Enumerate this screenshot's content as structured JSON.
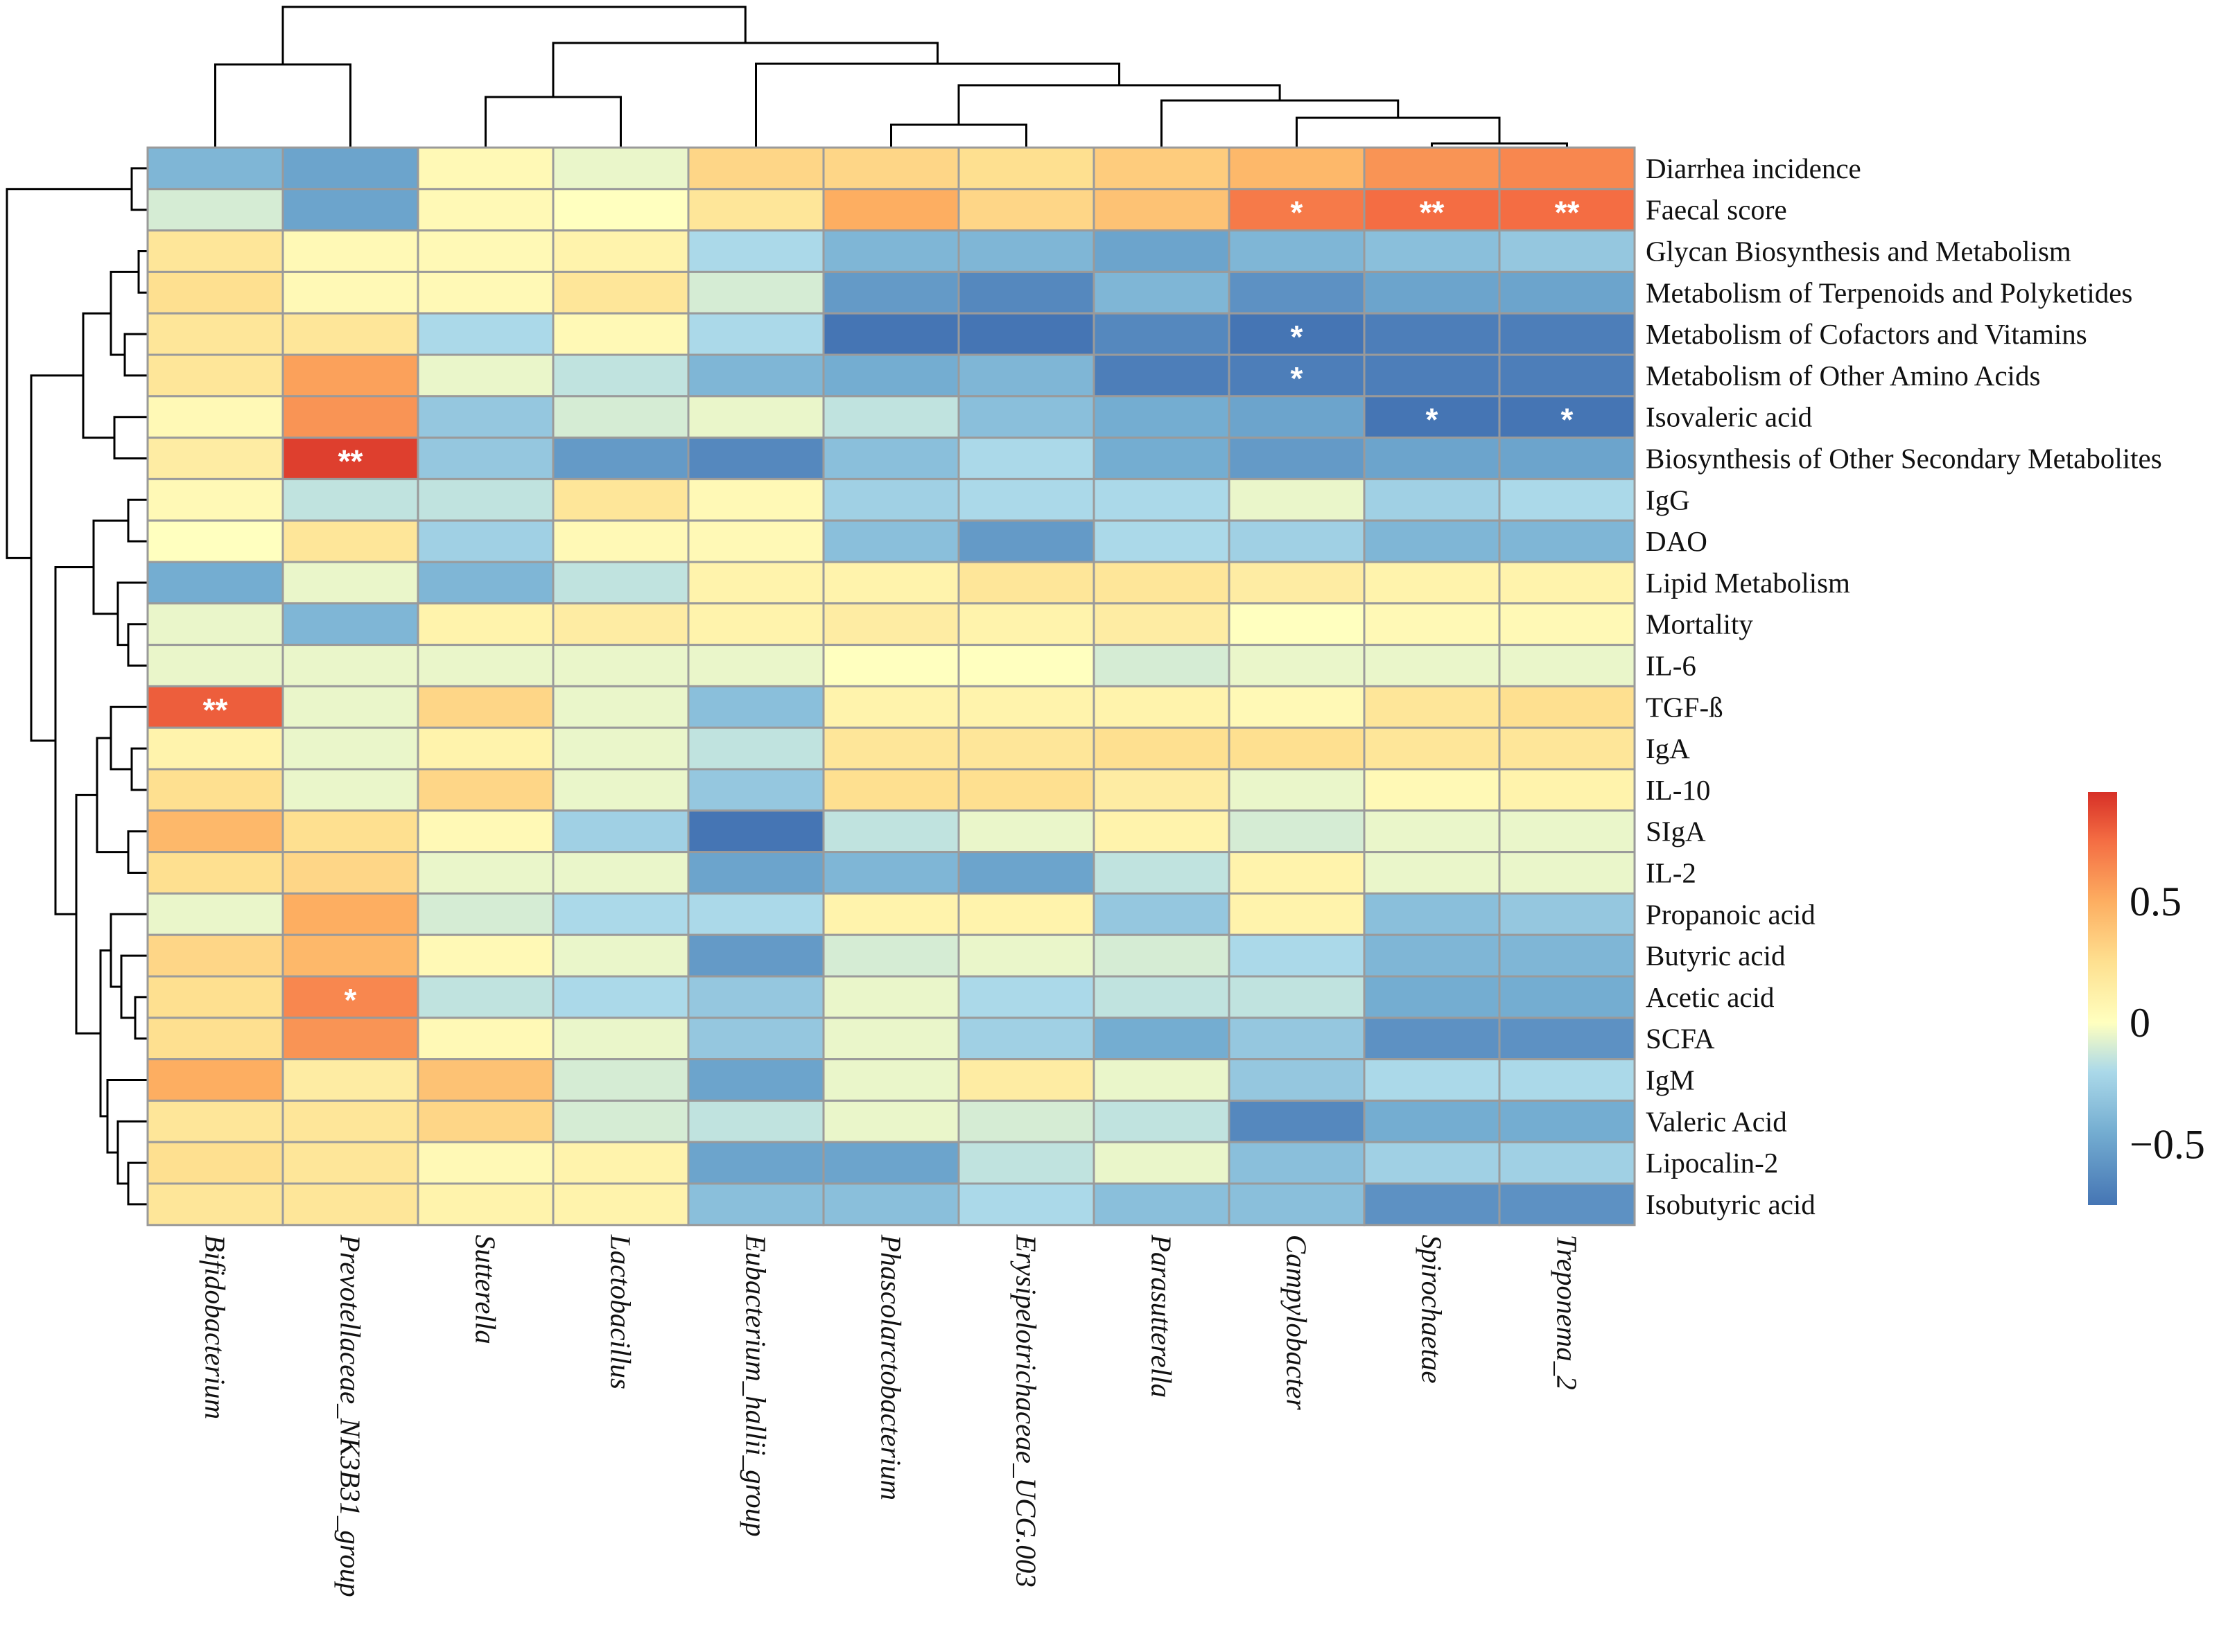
{
  "chart_data": {
    "type": "heatmap",
    "title": "",
    "columns": [
      "Bifidobacterium",
      "Prevotellaceae_NK3B31_group",
      "Sutterella",
      "Lactobacillus",
      "Eubacterium_hallii_group",
      "Phascolarctobacterium",
      "Erysipelotrichaceae_UCG.003",
      "Parasutterella",
      "Campylobacter",
      "Spirochaetae",
      "Treponema_2"
    ],
    "rows": [
      "Diarrhea incidence",
      "Faecal score",
      "Glycan Biosynthesis and Metabolism",
      "Metabolism of Terpenoids and Polyketides",
      "Metabolism of Cofactors and Vitamins",
      "Metabolism of Other Amino Acids",
      "Isovaleric acid",
      "Biosynthesis of Other Secondary Metabolites",
      "IgG",
      "DAO",
      "Lipid Metabolism",
      "Mortality",
      "IL-6",
      "TGF-ß",
      "IgA",
      "IL-10",
      "SIgA",
      "IL-2",
      "Propanoic acid",
      "Butyric acid",
      "Acetic acid",
      "SCFA",
      "IgM",
      "Valeric Acid",
      "Lipocalin-2",
      "Isobutyric acid"
    ],
    "values": [
      [
        -0.4,
        -0.5,
        0.05,
        -0.05,
        0.3,
        0.3,
        0.25,
        0.35,
        0.45,
        0.6,
        0.65
      ],
      [
        -0.1,
        -0.5,
        0.05,
        0.0,
        0.2,
        0.5,
        0.3,
        0.4,
        0.7,
        0.75,
        0.75
      ],
      [
        0.2,
        0.05,
        0.05,
        0.1,
        -0.2,
        -0.4,
        -0.4,
        -0.5,
        -0.4,
        -0.35,
        -0.3
      ],
      [
        0.25,
        0.05,
        0.05,
        0.2,
        -0.1,
        -0.55,
        -0.65,
        -0.4,
        -0.6,
        -0.5,
        -0.5
      ],
      [
        0.2,
        0.2,
        -0.2,
        0.05,
        -0.2,
        -0.75,
        -0.75,
        -0.65,
        -0.75,
        -0.7,
        -0.7
      ],
      [
        0.2,
        0.55,
        -0.05,
        -0.15,
        -0.4,
        -0.45,
        -0.4,
        -0.7,
        -0.7,
        -0.7,
        -0.7
      ],
      [
        0.05,
        0.6,
        -0.3,
        -0.1,
        -0.05,
        -0.15,
        -0.35,
        -0.45,
        -0.5,
        -0.75,
        -0.75
      ],
      [
        0.15,
        0.9,
        -0.3,
        -0.55,
        -0.65,
        -0.35,
        -0.2,
        -0.45,
        -0.55,
        -0.5,
        -0.5
      ],
      [
        0.05,
        -0.15,
        -0.15,
        0.2,
        0.05,
        -0.25,
        -0.2,
        -0.2,
        -0.05,
        -0.25,
        -0.2
      ],
      [
        0.0,
        0.2,
        -0.25,
        0.05,
        0.05,
        -0.35,
        -0.55,
        -0.2,
        -0.25,
        -0.4,
        -0.4
      ],
      [
        -0.45,
        -0.05,
        -0.4,
        -0.15,
        0.1,
        0.1,
        0.2,
        0.2,
        0.15,
        0.1,
        0.1
      ],
      [
        -0.05,
        -0.4,
        0.1,
        0.15,
        0.1,
        0.15,
        0.1,
        0.15,
        0.0,
        0.05,
        0.05
      ],
      [
        -0.05,
        -0.05,
        -0.05,
        -0.05,
        -0.05,
        0.0,
        0.0,
        -0.1,
        -0.05,
        -0.05,
        -0.05
      ],
      [
        0.8,
        -0.05,
        0.3,
        -0.05,
        -0.35,
        0.1,
        0.1,
        0.1,
        0.05,
        0.2,
        0.25
      ],
      [
        0.1,
        -0.05,
        0.1,
        -0.05,
        -0.15,
        0.2,
        0.2,
        0.25,
        0.25,
        0.2,
        0.2
      ],
      [
        0.25,
        -0.05,
        0.3,
        -0.05,
        -0.3,
        0.25,
        0.25,
        0.15,
        -0.05,
        0.05,
        0.1
      ],
      [
        0.45,
        0.25,
        0.05,
        -0.25,
        -0.75,
        -0.15,
        -0.05,
        0.1,
        -0.1,
        -0.05,
        -0.05
      ],
      [
        0.25,
        0.3,
        -0.05,
        -0.05,
        -0.5,
        -0.4,
        -0.5,
        -0.15,
        0.1,
        -0.05,
        -0.05
      ],
      [
        -0.05,
        0.5,
        -0.1,
        -0.2,
        -0.2,
        0.1,
        0.1,
        -0.3,
        0.1,
        -0.35,
        -0.3
      ],
      [
        0.3,
        0.45,
        0.05,
        -0.05,
        -0.55,
        -0.1,
        -0.05,
        -0.1,
        -0.2,
        -0.4,
        -0.4
      ],
      [
        0.25,
        0.65,
        -0.15,
        -0.2,
        -0.3,
        -0.05,
        -0.2,
        -0.15,
        -0.15,
        -0.45,
        -0.45
      ],
      [
        0.25,
        0.6,
        0.05,
        -0.05,
        -0.3,
        -0.05,
        -0.25,
        -0.45,
        -0.3,
        -0.6,
        -0.6
      ],
      [
        0.5,
        0.15,
        0.4,
        -0.1,
        -0.5,
        -0.05,
        0.15,
        -0.05,
        -0.3,
        -0.2,
        -0.2
      ],
      [
        0.2,
        0.2,
        0.3,
        -0.1,
        -0.15,
        -0.05,
        -0.1,
        -0.15,
        -0.65,
        -0.45,
        -0.45
      ],
      [
        0.25,
        0.2,
        0.05,
        0.1,
        -0.5,
        -0.5,
        -0.15,
        -0.05,
        -0.35,
        -0.25,
        -0.25
      ],
      [
        0.2,
        0.2,
        0.1,
        0.1,
        -0.35,
        -0.35,
        -0.2,
        -0.35,
        -0.35,
        -0.6,
        -0.6
      ]
    ],
    "significance": [
      {
        "row": 1,
        "col": 8,
        "mark": "*"
      },
      {
        "row": 1,
        "col": 9,
        "mark": "**"
      },
      {
        "row": 1,
        "col": 10,
        "mark": "**"
      },
      {
        "row": 4,
        "col": 8,
        "mark": "*"
      },
      {
        "row": 5,
        "col": 8,
        "mark": "*"
      },
      {
        "row": 6,
        "col": 9,
        "mark": "*"
      },
      {
        "row": 6,
        "col": 10,
        "mark": "*"
      },
      {
        "row": 7,
        "col": 1,
        "mark": "**"
      },
      {
        "row": 13,
        "col": 0,
        "mark": "**"
      },
      {
        "row": 20,
        "col": 1,
        "mark": "*"
      }
    ],
    "color_scale": {
      "range": [
        -0.75,
        0.95
      ],
      "stops": [
        {
          "value": -0.75,
          "color": "#4575b4"
        },
        {
          "value": -0.45,
          "color": "#74add1"
        },
        {
          "value": -0.2,
          "color": "#abd9e9"
        },
        {
          "value": 0,
          "color": "#ffffbf"
        },
        {
          "value": 0.25,
          "color": "#fee090"
        },
        {
          "value": 0.5,
          "color": "#fdae61"
        },
        {
          "value": 0.75,
          "color": "#f46d43"
        },
        {
          "value": 0.95,
          "color": "#d73027"
        }
      ]
    },
    "legend": {
      "position": "right",
      "ticks": [
        {
          "value": 0.5,
          "label": "0.5"
        },
        {
          "value": 0,
          "label": "0"
        },
        {
          "value": -0.5,
          "label": "−0.5"
        }
      ]
    }
  }
}
